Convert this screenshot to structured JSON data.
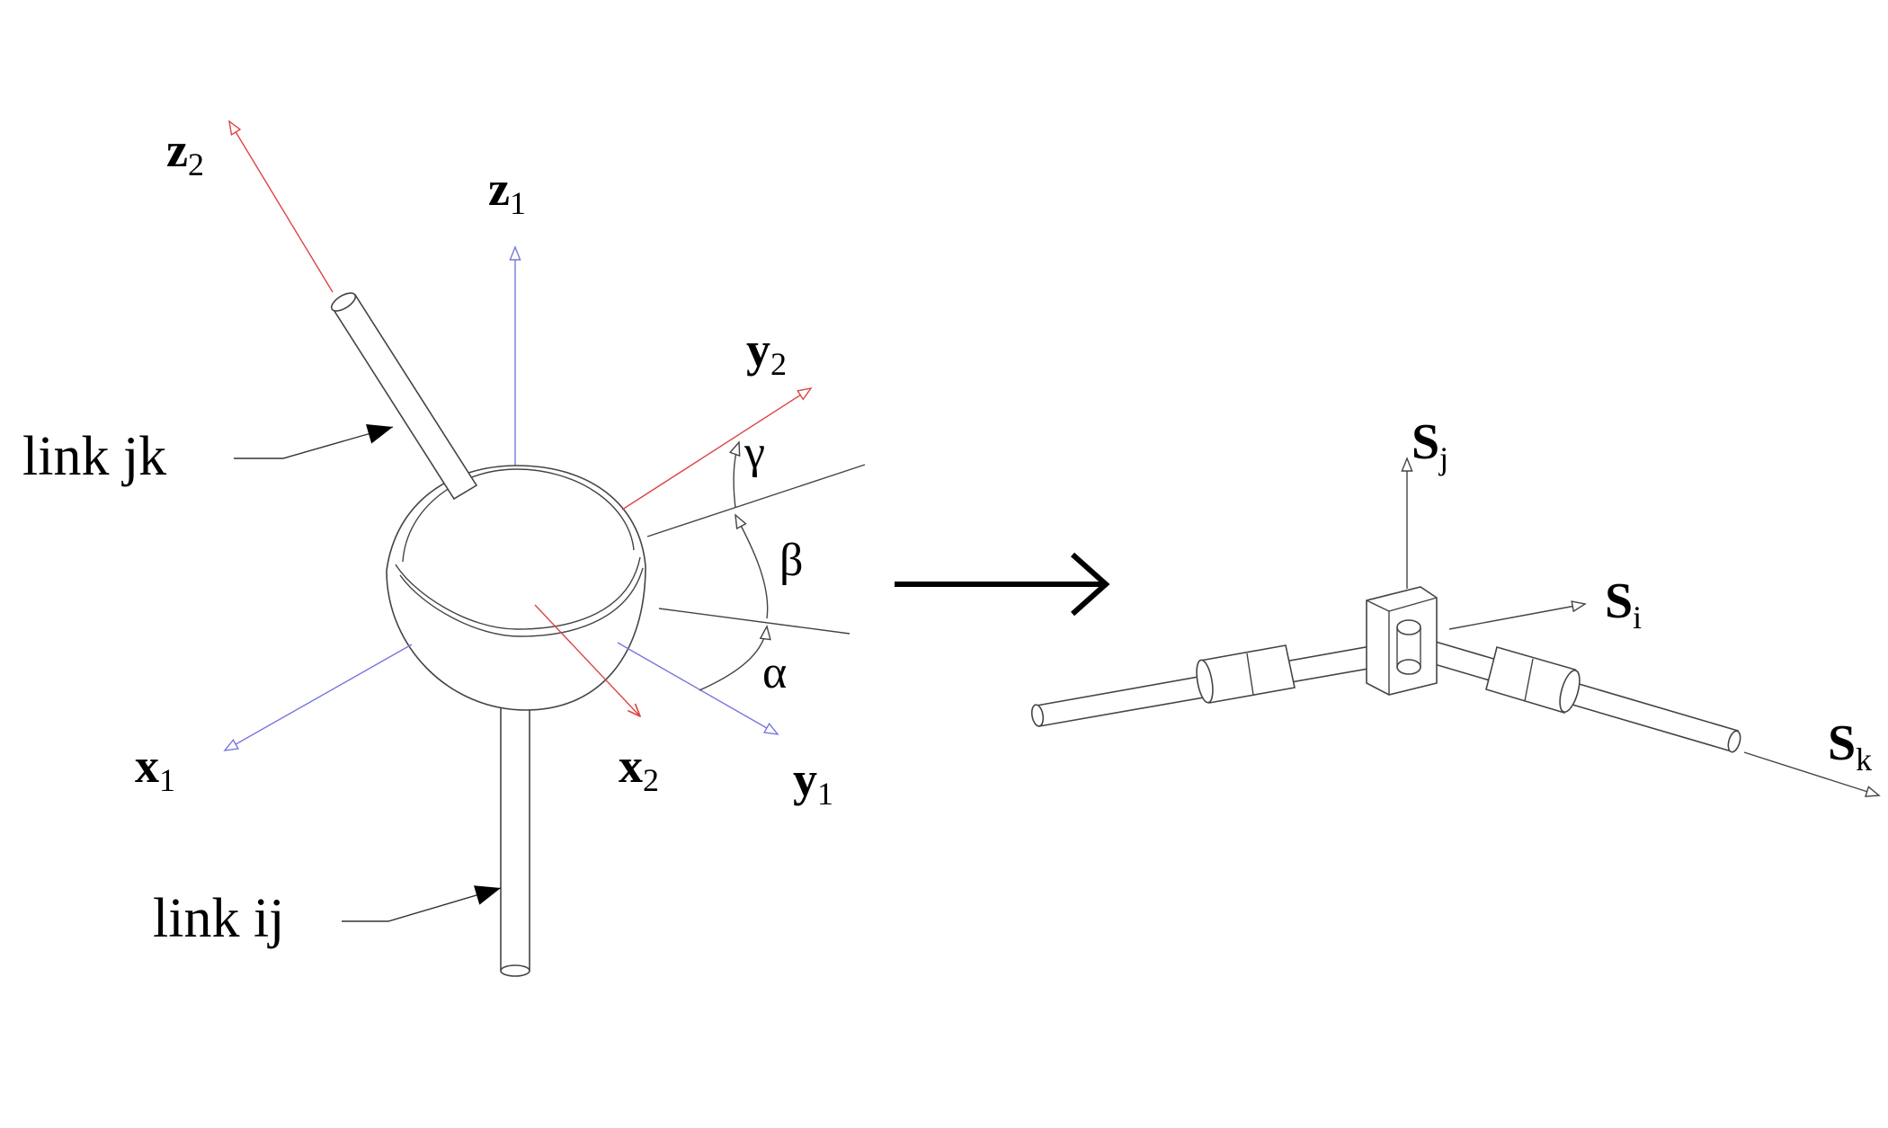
{
  "left_figure": {
    "axes": {
      "z2": {
        "base": "z",
        "sub": "2"
      },
      "z1": {
        "base": "z",
        "sub": "1"
      },
      "y2": {
        "base": "y",
        "sub": "2"
      },
      "y1": {
        "base": "y",
        "sub": "1"
      },
      "x1": {
        "base": "x",
        "sub": "1"
      },
      "x2": {
        "base": "x",
        "sub": "2"
      }
    },
    "angles": {
      "gamma": "γ",
      "beta": "β",
      "alpha": "α"
    },
    "labels": {
      "link_jk": "link jk",
      "link_ij": "link ij"
    },
    "colors": {
      "frame1": "#7777dd",
      "frame2": "#dd4444",
      "body": "#444444"
    }
  },
  "right_figure": {
    "axes": {
      "sj": {
        "base": "S",
        "sub": "j"
      },
      "si": {
        "base": "S",
        "sub": "i"
      },
      "sk": {
        "base": "S",
        "sub": "k"
      }
    }
  },
  "transform_arrow": "right-arrow"
}
